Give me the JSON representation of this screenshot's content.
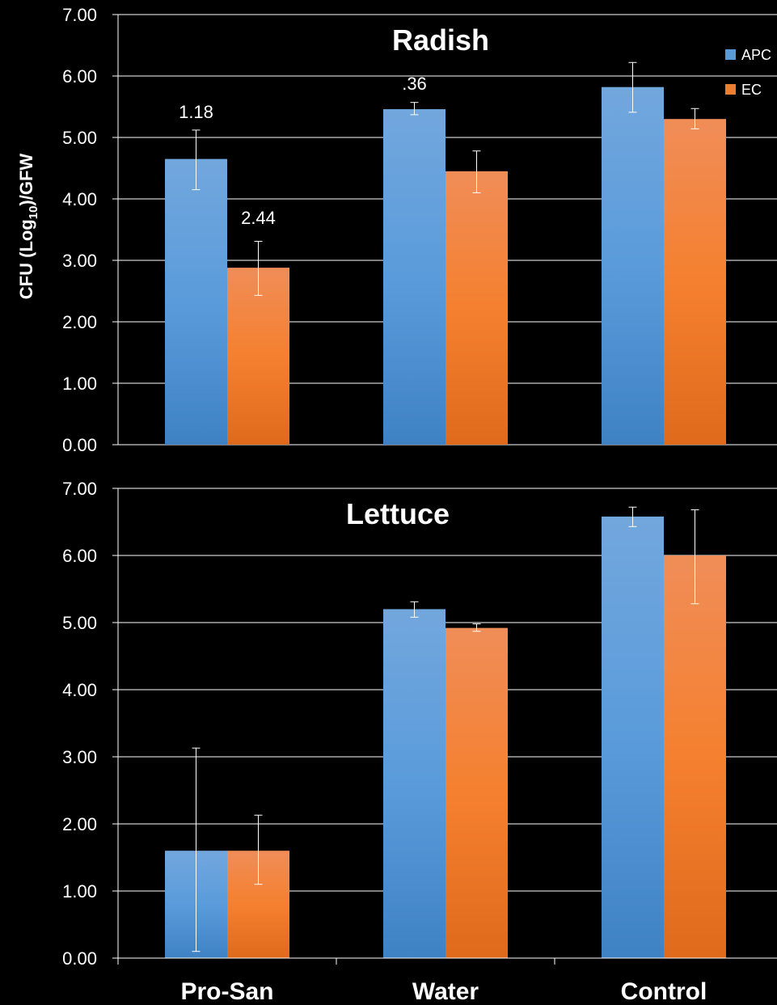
{
  "chart_data": [
    {
      "type": "bar",
      "title": "Radish",
      "categories": [
        "Pro-San",
        "Water",
        "Control"
      ],
      "ylabel": "CFU (Log10)/GFW",
      "ylim": [
        0,
        7
      ],
      "yticks": [
        "0.00",
        "1.00",
        "2.00",
        "3.00",
        "4.00",
        "5.00",
        "6.00",
        "7.00"
      ],
      "grid": true,
      "legend": "top-right",
      "series": [
        {
          "name": "APC",
          "color": "#5b9bd5",
          "values": [
            4.65,
            5.46,
            5.82
          ],
          "err_low": [
            4.15,
            5.37,
            5.41
          ],
          "err_high": [
            5.12,
            5.57,
            6.22
          ]
        },
        {
          "name": "EC",
          "color": "#ed7d31",
          "values": [
            2.88,
            4.45,
            5.3
          ],
          "err_low": [
            2.43,
            4.1,
            5.14
          ],
          "err_high": [
            3.31,
            4.78,
            5.47
          ]
        }
      ],
      "annotations": [
        {
          "text": "1.18",
          "category": 0,
          "series": 0,
          "y": 5.42
        },
        {
          "text": "2.44",
          "category": 0,
          "series": 1,
          "y": 3.7
        },
        {
          "text": ".36",
          "category": 1,
          "series": 0,
          "y": 5.88
        }
      ]
    },
    {
      "type": "bar",
      "title": "Lettuce",
      "categories": [
        "Pro-San",
        "Water",
        "Control"
      ],
      "ylabel": "CFU (Log10)/GFW",
      "ylim": [
        0,
        7
      ],
      "yticks": [
        "0.00",
        "1.00",
        "2.00",
        "3.00",
        "4.00",
        "5.00",
        "6.00",
        "7.00"
      ],
      "grid": true,
      "series": [
        {
          "name": "APC",
          "color": "#5b9bd5",
          "values": [
            1.6,
            5.2,
            6.58
          ],
          "err_low": [
            0.1,
            5.08,
            6.43
          ],
          "err_high": [
            3.13,
            5.31,
            6.72
          ]
        },
        {
          "name": "EC",
          "color": "#ed7d31",
          "values": [
            1.6,
            4.92,
            6.0
          ],
          "err_low": [
            1.1,
            4.87,
            5.28
          ],
          "err_high": [
            2.13,
            4.98,
            6.68
          ]
        }
      ],
      "annotations": []
    }
  ],
  "axis": {
    "ylabel_main": "CFU (Log",
    "ylabel_sub": "10",
    "ylabel_tail": ")/GFW"
  },
  "legend": {
    "items": [
      {
        "label": "APC",
        "color": "#5b9bd5"
      },
      {
        "label": "EC",
        "color": "#ed7d31"
      }
    ]
  }
}
